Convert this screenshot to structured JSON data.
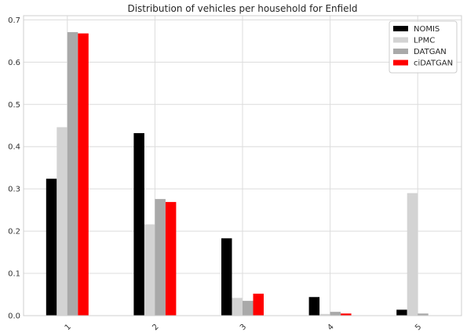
{
  "chart_data": {
    "type": "bar",
    "title": "Distribution of vehicles per household for Enfield",
    "xlabel": "",
    "ylabel": "",
    "categories": [
      "1",
      "2",
      "3",
      "4",
      "5"
    ],
    "ylim": [
      0,
      0.71
    ],
    "yticks": [
      "0.0",
      "0.1",
      "0.2",
      "0.3",
      "0.4",
      "0.5",
      "0.6",
      "0.7"
    ],
    "grid": true,
    "legend_position": "top-right",
    "series": [
      {
        "name": "NOMIS",
        "color": "#000000",
        "values": [
          0.324,
          0.432,
          0.183,
          0.044,
          0.014
        ]
      },
      {
        "name": "LPMC",
        "color": "#d3d3d3",
        "values": [
          0.446,
          0.216,
          0.042,
          0.004,
          0.29
        ]
      },
      {
        "name": "DATGAN",
        "color": "#a9a9a9",
        "values": [
          0.671,
          0.276,
          0.035,
          0.009,
          0.005
        ]
      },
      {
        "name": "ciDATGAN",
        "color": "#ff0000",
        "values": [
          0.668,
          0.269,
          0.052,
          0.005,
          0.0
        ]
      }
    ]
  }
}
